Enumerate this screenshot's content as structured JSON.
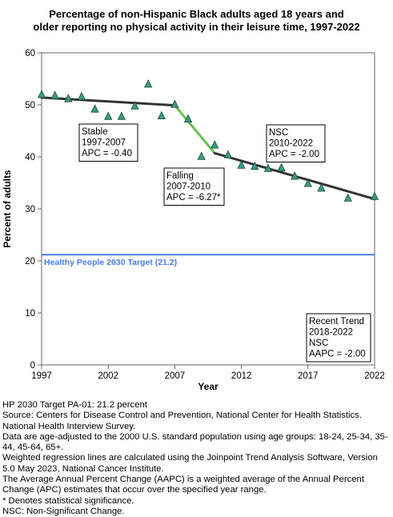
{
  "title_line1": "Percentage of non-Hispanic Black adults aged 18 years and",
  "title_line2": "older reporting no physical activity in their leisure time, 1997-2022",
  "chart_data": {
    "type": "scatter",
    "title": "Percentage of non-Hispanic Black adults aged 18 years and older reporting no physical activity in their leisure time, 1997-2022",
    "xlabel": "Year",
    "ylabel": "Percent of adults",
    "xlim": [
      1997,
      2022
    ],
    "ylim": [
      0,
      60
    ],
    "x_ticks": [
      1997,
      2002,
      2007,
      2012,
      2017,
      2022
    ],
    "y_ticks": [
      0,
      10,
      20,
      30,
      40,
      50,
      60
    ],
    "grid": false,
    "observed": {
      "marker": "triangle",
      "color": "#3a9a84",
      "x": [
        1997,
        1998,
        1999,
        2000,
        2001,
        2002,
        2003,
        2004,
        2005,
        2006,
        2007,
        2008,
        2009,
        2010,
        2011,
        2012,
        2013,
        2014,
        2015,
        2016,
        2017,
        2018,
        2020,
        2022
      ],
      "y": [
        52.0,
        51.8,
        51.2,
        51.6,
        49.2,
        47.8,
        47.8,
        49.8,
        54.0,
        47.9,
        50.1,
        47.3,
        40.1,
        42.3,
        40.4,
        38.4,
        38.2,
        37.8,
        37.9,
        36.3,
        34.9,
        34.0,
        32.1,
        32.4
      ]
    },
    "trend_segments": [
      {
        "x": [
          1997,
          2007
        ],
        "y": [
          51.4,
          49.9
        ],
        "color": "#333333"
      },
      {
        "x": [
          2007,
          2010
        ],
        "y": [
          49.9,
          40.7
        ],
        "color": "#66c24d"
      },
      {
        "x": [
          2010,
          2022
        ],
        "y": [
          40.7,
          31.9
        ],
        "color": "#333333"
      }
    ],
    "target": {
      "value": 21.2,
      "label": "Healthy People 2030 Target (21.2)",
      "color": "#4a7ee8"
    },
    "annotations": [
      {
        "lines": [
          "Stable",
          "1997-2007",
          "APC = -0.40"
        ]
      },
      {
        "lines": [
          "Falling",
          "2007-2010",
          "APC = -6.27*"
        ]
      },
      {
        "lines": [
          "NSC",
          "2010-2022",
          "APC = -2.00"
        ]
      },
      {
        "lines": [
          "Recent Trend",
          "2018-2022",
          "NSC",
          "AAPC = -2.00"
        ]
      }
    ]
  },
  "notes": [
    "HP 2030 Target PA-01: 21.2 percent",
    "Source: Centers for Disease Control and Prevention, National Center for Health Statistics. National Health Interview Survey.",
    "Data are age-adjusted to the 2000 U.S. standard population using age groups: 18-24, 25-34, 35-44, 45-64, 65+.",
    "Weighted regression lines are calculated using the Joinpoint Trend Analysis Software, Version 5.0 May 2023, National Cancer Institute.",
    "The Average Annual Percent Change (AAPC) is a weighted average of the Annual Percent Change (APC) estimates that occur over the specified year range.",
    "* Denotes statistical significance.",
    "NSC: Non-Significant Change."
  ]
}
